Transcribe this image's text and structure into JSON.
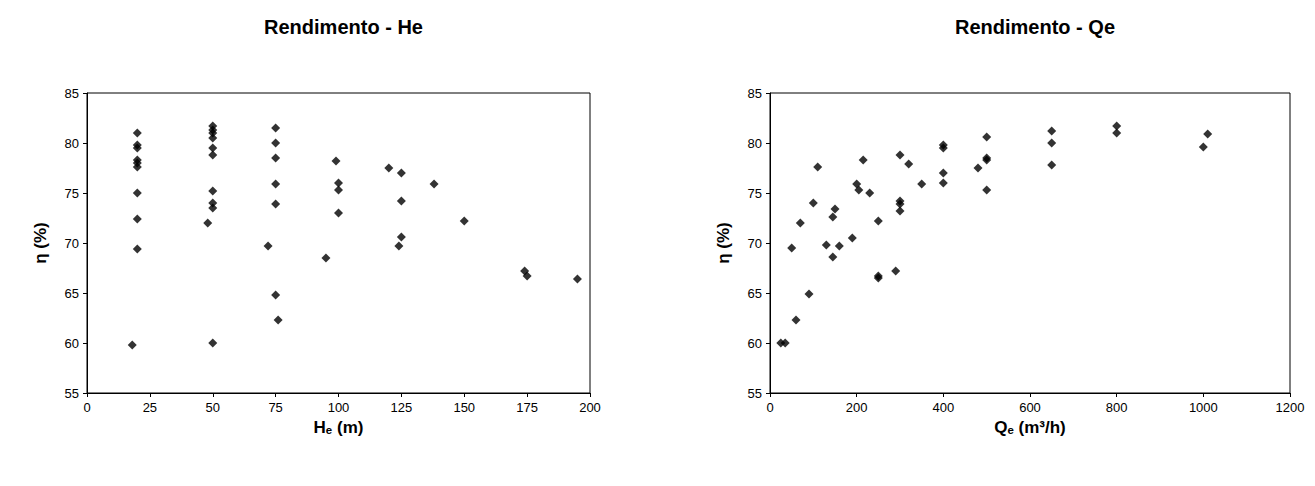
{
  "chart_data": [
    {
      "type": "scatter",
      "title": "Rendimento - He",
      "x_label": "Hₑ (m)",
      "y_label": "η (%)",
      "color": "#000000",
      "marker": "diamond",
      "grid": false,
      "x": [
        18,
        20,
        20,
        20,
        20,
        20,
        20,
        20,
        20,
        20,
        50,
        48,
        50,
        50,
        50,
        50,
        50,
        50,
        50,
        50,
        50,
        76,
        75,
        72,
        75,
        75,
        75,
        75,
        75,
        95,
        100,
        100,
        100,
        99,
        120,
        124,
        125,
        125,
        125,
        138,
        150,
        174,
        175,
        195
      ],
      "values": [
        59.8,
        69.4,
        72.4,
        75,
        77.6,
        78,
        78.3,
        79.5,
        79.8,
        81,
        60,
        72,
        73.5,
        74,
        75.2,
        78.8,
        79.5,
        80.5,
        81,
        81.3,
        81.7,
        62.3,
        64.8,
        69.7,
        73.9,
        75.9,
        78.5,
        80,
        81.5,
        68.5,
        73,
        75.3,
        76,
        78.2,
        77.5,
        69.7,
        70.6,
        74.2,
        77,
        75.9,
        72.2,
        67.2,
        66.7,
        66.4
      ],
      "xlim": [
        0,
        200
      ],
      "xticks": [
        0,
        25,
        50,
        75,
        100,
        125,
        150,
        175,
        200
      ],
      "ylim": [
        55,
        85
      ],
      "yticks": [
        55,
        60,
        65,
        70,
        75,
        80,
        85
      ]
    },
    {
      "type": "scatter",
      "title": "Rendimento - Qe",
      "x_label": "Qₑ (m³/h)",
      "y_label": "η (%)",
      "color": "#000000",
      "marker": "diamond",
      "grid": false,
      "x": [
        25,
        35,
        50,
        60,
        70,
        90,
        100,
        110,
        130,
        145,
        145,
        150,
        160,
        190,
        200,
        205,
        215,
        230,
        250,
        250,
        250,
        290,
        300,
        300,
        300,
        300,
        320,
        350,
        400,
        400,
        400,
        400,
        480,
        500,
        500,
        500,
        500,
        650,
        650,
        650,
        800,
        800,
        1000,
        1010
      ],
      "values": [
        60,
        60,
        69.5,
        62.3,
        72,
        64.9,
        74,
        77.6,
        69.8,
        68.6,
        72.6,
        73.4,
        69.7,
        70.5,
        75.9,
        75.3,
        78.3,
        75,
        66.5,
        66.7,
        72.2,
        67.2,
        73.2,
        73.9,
        74.2,
        78.8,
        77.9,
        75.9,
        76,
        77,
        79.5,
        79.8,
        77.5,
        75.3,
        78.3,
        78.5,
        80.6,
        77.8,
        80,
        81.2,
        81,
        81.7,
        79.6,
        80.9
      ],
      "xlim": [
        0,
        1200
      ],
      "xticks": [
        0,
        200,
        400,
        600,
        800,
        1000,
        1200
      ],
      "ylim": [
        55,
        85
      ],
      "yticks": [
        55,
        60,
        65,
        70,
        75,
        80,
        85
      ]
    }
  ]
}
